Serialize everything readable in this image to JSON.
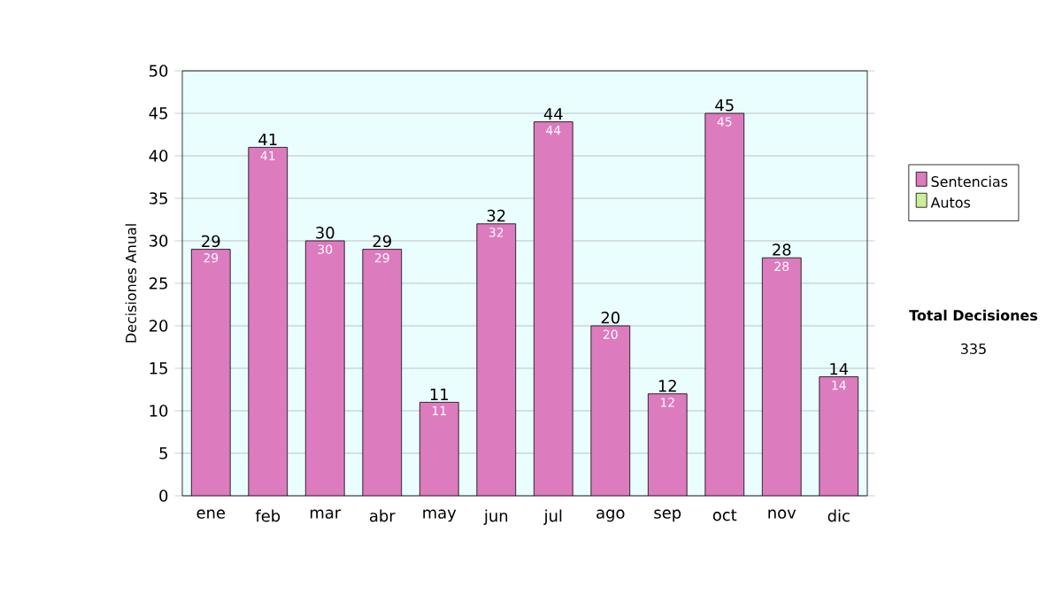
{
  "chart_data": {
    "type": "bar",
    "stacked": true,
    "ylabel": "Decisiones Anual",
    "categories": [
      "ene",
      "feb",
      "mar",
      "abr",
      "may",
      "jun",
      "jul",
      "ago",
      "sep",
      "oct",
      "nov",
      "dic"
    ],
    "series": [
      {
        "name": "Sentencias",
        "color": "#dd7bbf",
        "values": [
          29,
          41,
          30,
          29,
          11,
          32,
          44,
          20,
          12,
          45,
          28,
          14
        ]
      },
      {
        "name": "Autos",
        "color": "#ccee99",
        "values": [
          null,
          null,
          null,
          null,
          null,
          null,
          null,
          null,
          null,
          null,
          null,
          null
        ]
      }
    ],
    "data_labels": true,
    "totals": [
      "29",
      "41",
      "30",
      "29",
      "11",
      "32",
      "44",
      "20",
      "12",
      "45",
      "28",
      "14"
    ],
    "ylim": [
      0,
      50
    ],
    "yticks": [
      0,
      5,
      10,
      15,
      20,
      25,
      30,
      35,
      40,
      45,
      50
    ],
    "grid": "y",
    "legend": "right",
    "annotations": [
      "Total Decisiones",
      "335"
    ]
  }
}
